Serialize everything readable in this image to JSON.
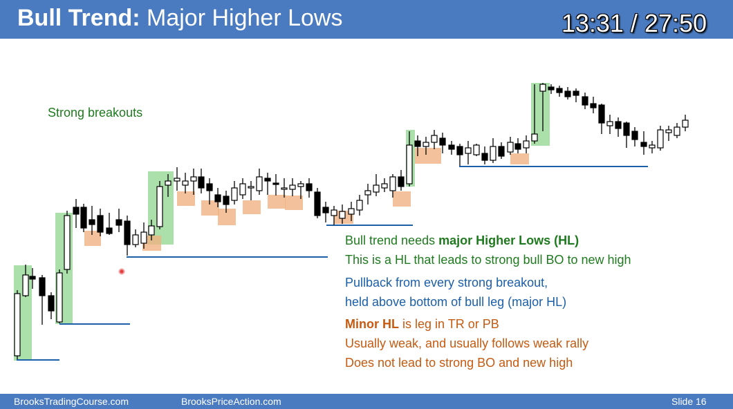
{
  "header": {
    "title_bold": "Bull Trend:",
    "title_rest": "Major Higher Lows",
    "timer": "13:31 / 27:50"
  },
  "annotations": {
    "strong_breakouts": "Strong breakouts",
    "line1_pre": "Bull trend needs ",
    "line1_bold": "major Higher Lows (HL)",
    "line2": "This is a HL that leads to strong bull BO to new high",
    "line3": "Pullback from every strong breakout,",
    "line4": "held above bottom of bull leg (major HL)",
    "line5_bold": "Minor HL",
    "line5_rest": " is leg in TR or PB",
    "line6": "Usually weak, and usually follows weak rally",
    "line7": "Does not lead to strong BO and new high"
  },
  "footer": {
    "left": "BrooksTradingCourse.com",
    "center": "BrooksPriceAction.com",
    "right": "Slide  16"
  },
  "colors": {
    "header_bg": "#4a7bc0",
    "green_box": "#8fd68f",
    "orange_box": "#f0b183",
    "hl_line": "#1b5fa8",
    "green_text": "#1f7a1f",
    "blue_text": "#1b5fa8",
    "orange_text": "#c55a11"
  }
}
